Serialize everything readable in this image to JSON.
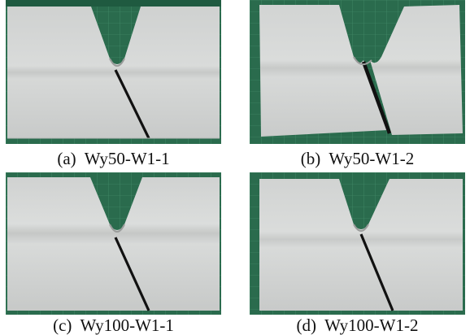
{
  "colors": {
    "mat": "#2a6b4d",
    "mat_dark": "#1f5a40",
    "grid": "#3f8a66",
    "plate_light": "#d3d5d4",
    "plate_mid": "#c4c6c5",
    "crack": "#111111"
  },
  "panels": [
    {
      "id": "a",
      "caption": "(a)  Wy50-W1-1"
    },
    {
      "id": "b",
      "caption": "(b)  Wy50-W1-2"
    },
    {
      "id": "c",
      "caption": "(c)  Wy100-W1-1"
    },
    {
      "id": "d",
      "caption": "(d)  Wy100-W1-2"
    }
  ]
}
